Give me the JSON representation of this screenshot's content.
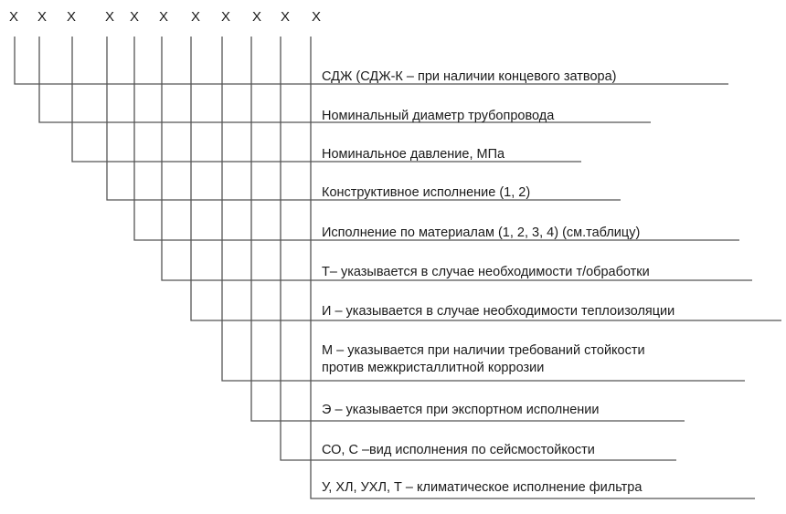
{
  "markers": [
    "X",
    "X",
    "X",
    "X",
    "X",
    "X",
    "X",
    "X",
    "X",
    "X",
    "X"
  ],
  "items": [
    {
      "text": "СДЖ (СДЖ-К – при наличии концевого затвора)"
    },
    {
      "text": "Номинальный диаметр трубопровода"
    },
    {
      "text": "Номинальное давление, МПа"
    },
    {
      "text": "Конструктивное исполнение (1, 2)"
    },
    {
      "text": "Исполнение по материалам (1, 2, 3, 4) (см.таблицу)"
    },
    {
      "text": "Т– указывается в случае необходимости т/обработки"
    },
    {
      "text": "И – указывается в случае необходимости теплоизоляции"
    },
    {
      "text": "М  – указывается при наличии требований стойкости",
      "text2": "против  межкристаллитной коррозии"
    },
    {
      "text": "Э – указывается при экспортном исполнении"
    },
    {
      "text": "СО, С –вид исполнения по сейсмостойкости"
    },
    {
      "text": "У, ХЛ, УХЛ, Т – климатическое исполнение фильтра"
    }
  ],
  "colors": {
    "line": "#555555",
    "text": "#1a1a1a"
  }
}
